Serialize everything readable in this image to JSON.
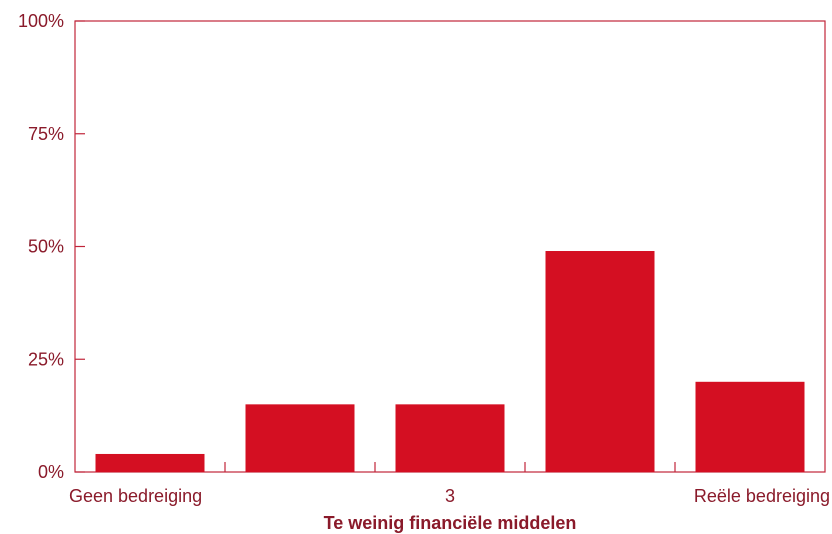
{
  "colors": {
    "bar": "#d40f22",
    "axis": "#c0253a",
    "text": "#8a1a2a"
  },
  "chart_data": {
    "type": "bar",
    "categories": [
      "Geen bedreiging",
      "",
      "3",
      "",
      "Reële bedreiging"
    ],
    "values": [
      4,
      15,
      15,
      49,
      20
    ],
    "ylim": [
      0,
      100
    ],
    "yticks": [
      0,
      25,
      50,
      75,
      100
    ],
    "ytick_labels": [
      "0%",
      "25%",
      "50%",
      "75%",
      "100%"
    ],
    "xlabel": "Te weinig financiële middelen",
    "ylabel": "",
    "grid": false,
    "legend": "none"
  }
}
